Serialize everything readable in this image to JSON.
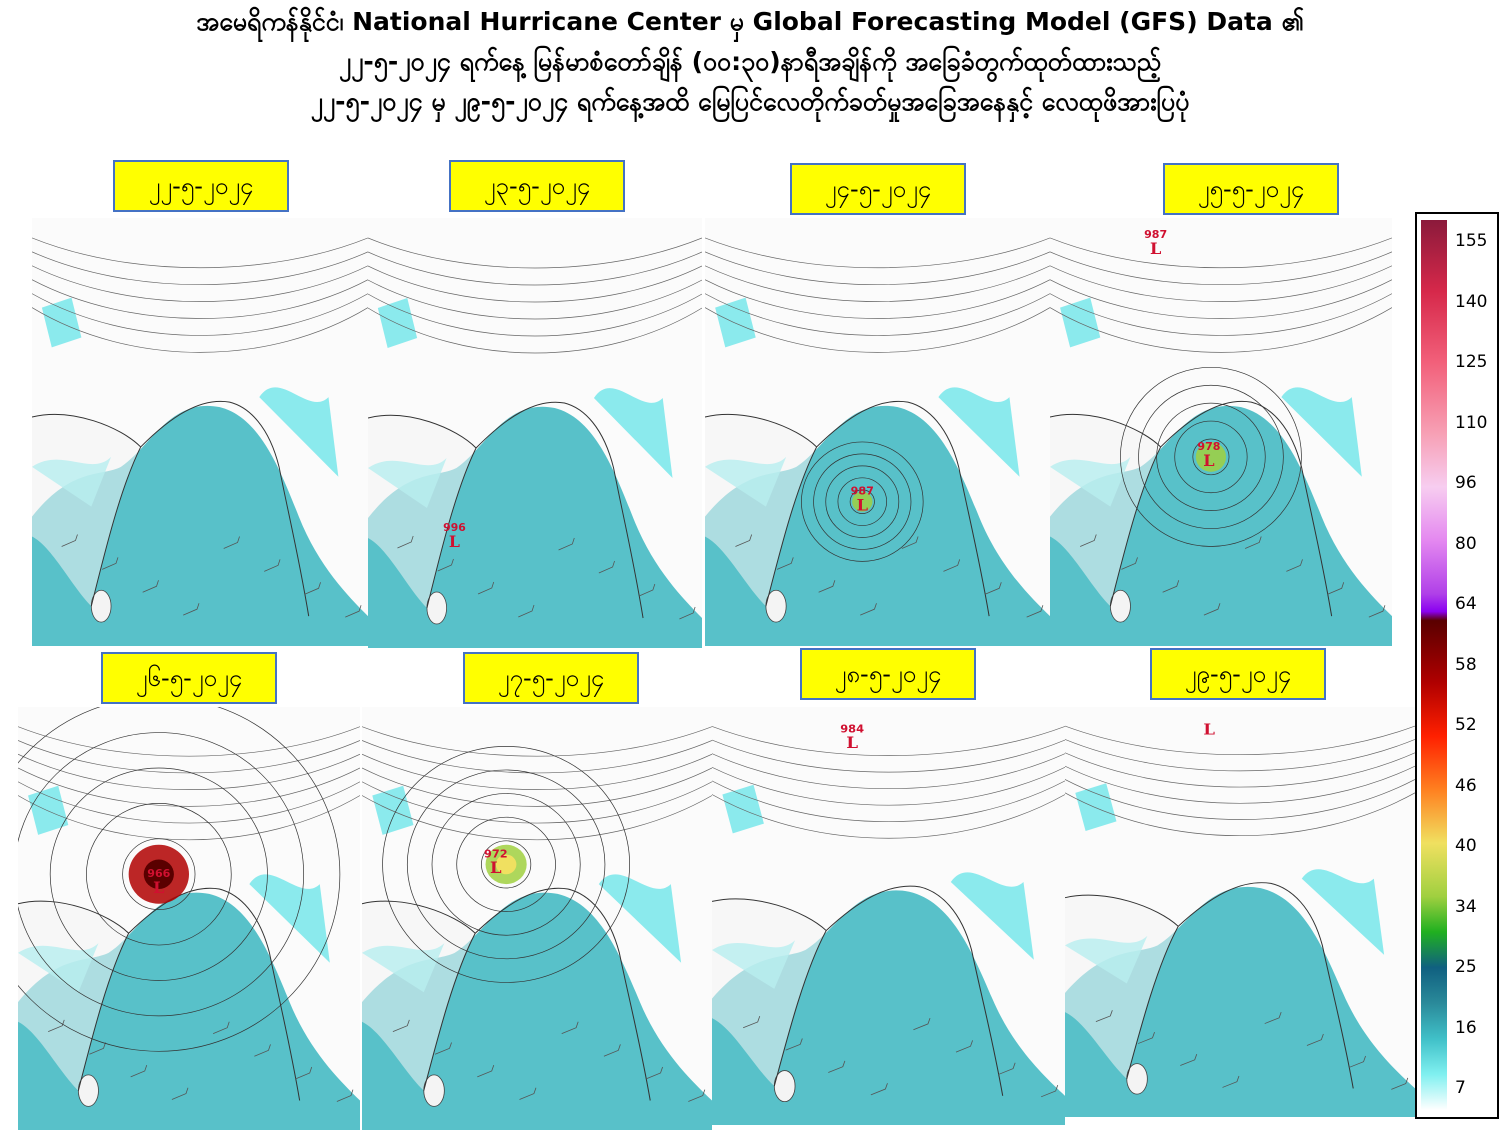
{
  "header": {
    "title_lines": [
      "အမေရိကန်နိုင်ငံ၊ National Hurricane Center မှ Global Forecasting Model (GFS) Data ၏",
      "၂၂-၅-၂၀၂၄ ရက်နေ့ မြန်မာစံတော်ချိန် (၀၀:၃၀)နာရီအချိန်ကို အခြေခံတွက်ထုတ်ထားသည့်",
      "၂၂-၅-၂၀၂၄ မှ ၂၉-၅-၂၀၂၄ ရက်နေ့အထိ မြေပြင်လေတိုက်ခတ်မှုအခြေအနေနှင့် လေထုဖိအားပြပုံ"
    ]
  },
  "panels": [
    {
      "date": "၂၂-၅-၂၀၂၄",
      "lows": []
    },
    {
      "date": "၂၃-၅-၂၀၂၄",
      "lows": [
        {
          "pressure": 996,
          "symbol": "L"
        }
      ]
    },
    {
      "date": "၂၄-၅-၂၀၂၄",
      "lows": [
        {
          "pressure": 987,
          "symbol": "L"
        }
      ]
    },
    {
      "date": "၂၅-၅-၂၀၂၄",
      "lows": [
        {
          "pressure": 978,
          "symbol": "L"
        },
        {
          "pressure": 987,
          "symbol": "L"
        }
      ]
    },
    {
      "date": "၂၆-၅-၂၀၂၄",
      "lows": [
        {
          "pressure": 966,
          "symbol": "L"
        }
      ]
    },
    {
      "date": "၂၇-၅-၂၀၂၄",
      "lows": [
        {
          "pressure": 972,
          "symbol": "L"
        }
      ]
    },
    {
      "date": "၂၈-၅-၂၀၂၄",
      "lows": [
        {
          "pressure": 984,
          "symbol": "L"
        }
      ]
    },
    {
      "date": "၂၉-၅-၂၀၂၄",
      "lows": [
        {
          "pressure": null,
          "symbol": "L"
        }
      ]
    }
  ],
  "colorbar": {
    "ticks": [
      155,
      140,
      125,
      110,
      96,
      80,
      64,
      58,
      52,
      46,
      40,
      34,
      25,
      16,
      7
    ]
  }
}
